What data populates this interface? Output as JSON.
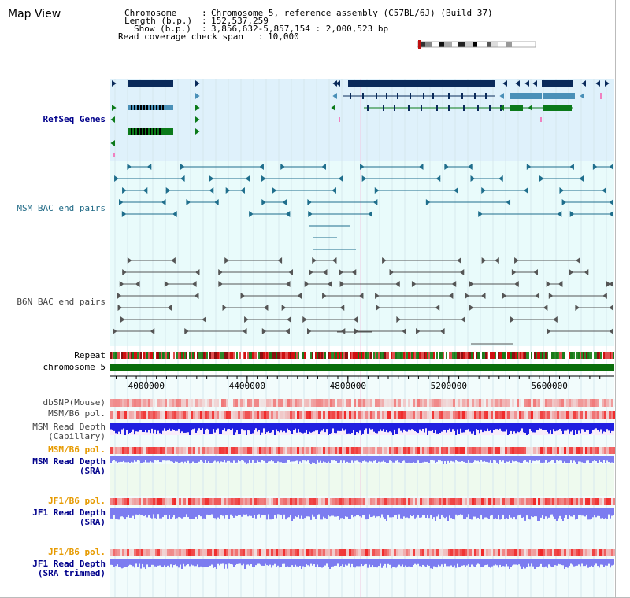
{
  "app": {
    "title": "Map View"
  },
  "info": {
    "chromosome_label": "Chromosome",
    "chromosome_value": "Chromosome 5, reference assembly (C57BL/6J) (Build 37)",
    "length_label": "Length (b.p.)",
    "length_value": "152,537,259",
    "show_label": "Show (b.p.)",
    "show_value": "3,856,632-5,857,154 : 2,000,523 bp",
    "span_label": "Read coverage check span",
    "span_value": "10,000"
  },
  "tracks": {
    "refseq": "RefSeq Genes",
    "msm_bac": "MSM BAC end pairs",
    "b6n_bac": "B6N BAC end pairs",
    "repeat": "Repeat",
    "chromosome": "chromosome 5",
    "dbsnp": "dbSNP(Mouse)",
    "msm_b6_pol_1": "MSM/B6 pol.",
    "msm_depth_cap_1": "MSM Read Depth",
    "msm_depth_cap_2": "(Capillary)",
    "msm_b6_pol_2": "MSM/B6 pol.",
    "msm_depth_sra_1": "MSM Read Depth",
    "msm_depth_sra_2": "(SRA)",
    "jf1_b6_pol_1": "JF1/B6 pol.",
    "jf1_depth_sra_1": "JF1 Read Depth",
    "jf1_depth_sra_2": "(SRA)",
    "jf1_b6_pol_2": "JF1/B6 pol.",
    "jf1_depth_trim_1": "JF1 Read Depth",
    "jf1_depth_trim_2": "(SRA trimmed)"
  },
  "axis": {
    "start_bp": 3856632,
    "end_bp": 5857154,
    "ticks": [
      {
        "value": 4000000,
        "label": "4000000"
      },
      {
        "value": 4400000,
        "label": "4400000"
      },
      {
        "value": 4800000,
        "label": "4800000"
      },
      {
        "value": 5200000,
        "label": "5200000"
      },
      {
        "value": 5600000,
        "label": "5600000"
      }
    ]
  },
  "colors": {
    "gene_navy": "#0a2a5a",
    "gene_blue": "#4a90b8",
    "gene_green": "#0b7a1a",
    "refseq_bg": "#dff1fb",
    "bac_bg": "#e9fbfb",
    "msm_bac": "#1f6e8c",
    "b6n_bac": "#555555",
    "depth_blue": "#2020e0",
    "depth_sra": "#7c7cf0",
    "chromosome": "#0b6e0b"
  }
}
